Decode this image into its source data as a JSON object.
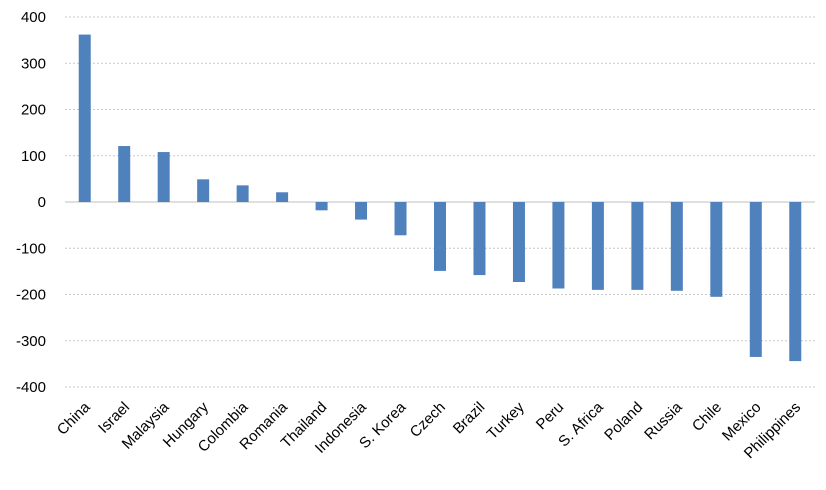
{
  "chart_data": {
    "type": "bar",
    "categories": [
      "China",
      "Israel",
      "Malaysia",
      "Hungary",
      "Colombia",
      "Romania",
      "Thailand",
      "Indonesia",
      "S. Korea",
      "Czech",
      "Brazil",
      "Turkey",
      "Peru",
      "S. Africa",
      "Poland",
      "Russia",
      "Chile",
      "Mexico",
      "Philippines"
    ],
    "values": [
      362,
      121,
      108,
      49,
      36,
      21,
      -18,
      -38,
      -72,
      -149,
      -158,
      -173,
      -187,
      -190,
      -190,
      -192,
      -205,
      -335,
      -344
    ],
    "ylim": [
      -400,
      400
    ],
    "yticks": [
      400,
      300,
      200,
      100,
      0,
      -100,
      -200,
      -300,
      -400
    ],
    "ytick_labels": [
      "400",
      "300",
      "200",
      "100",
      "0",
      "-100",
      "-200",
      "-300",
      "-400"
    ],
    "bar_color": "#4f81bd",
    "grid": true,
    "title": "",
    "xlabel": "",
    "ylabel": ""
  }
}
